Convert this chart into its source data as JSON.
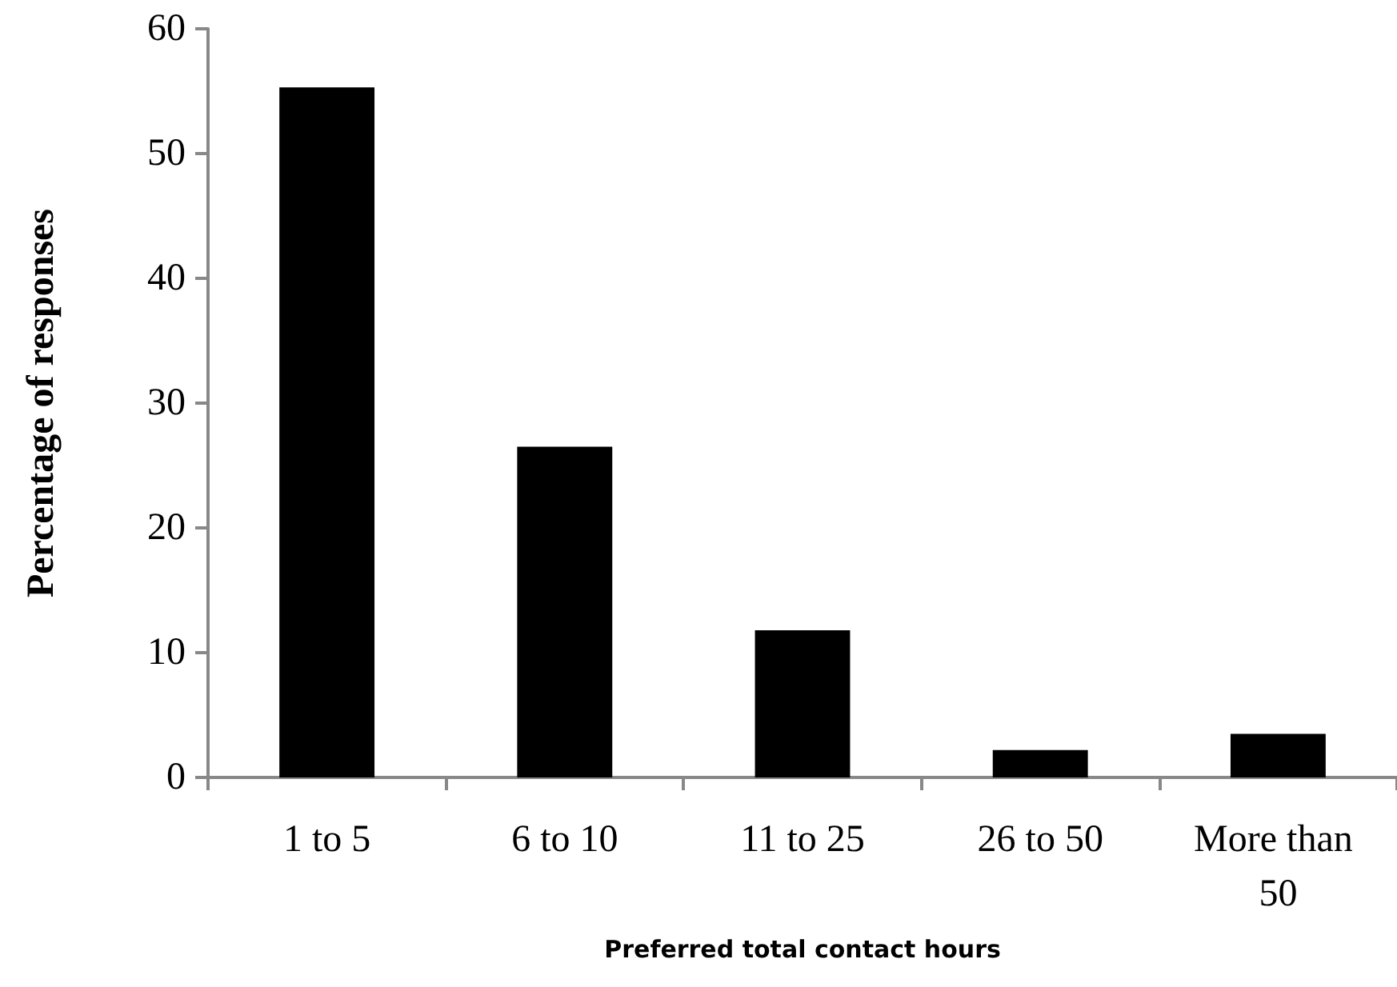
{
  "chart_data": {
    "type": "bar",
    "xlabel": "Preferred total contact hours",
    "ylabel": "Percentage of responses",
    "categories": [
      "1 to 5",
      "6 to 10",
      "11 to 25",
      "26 to 50",
      "More than 50"
    ],
    "values": [
      55.3,
      26.5,
      11.8,
      2.2,
      3.5
    ],
    "color": "#000000",
    "ylim": [
      0,
      60
    ],
    "yticks": [
      0,
      10,
      20,
      30,
      40,
      50,
      60
    ],
    "grid": false
  }
}
